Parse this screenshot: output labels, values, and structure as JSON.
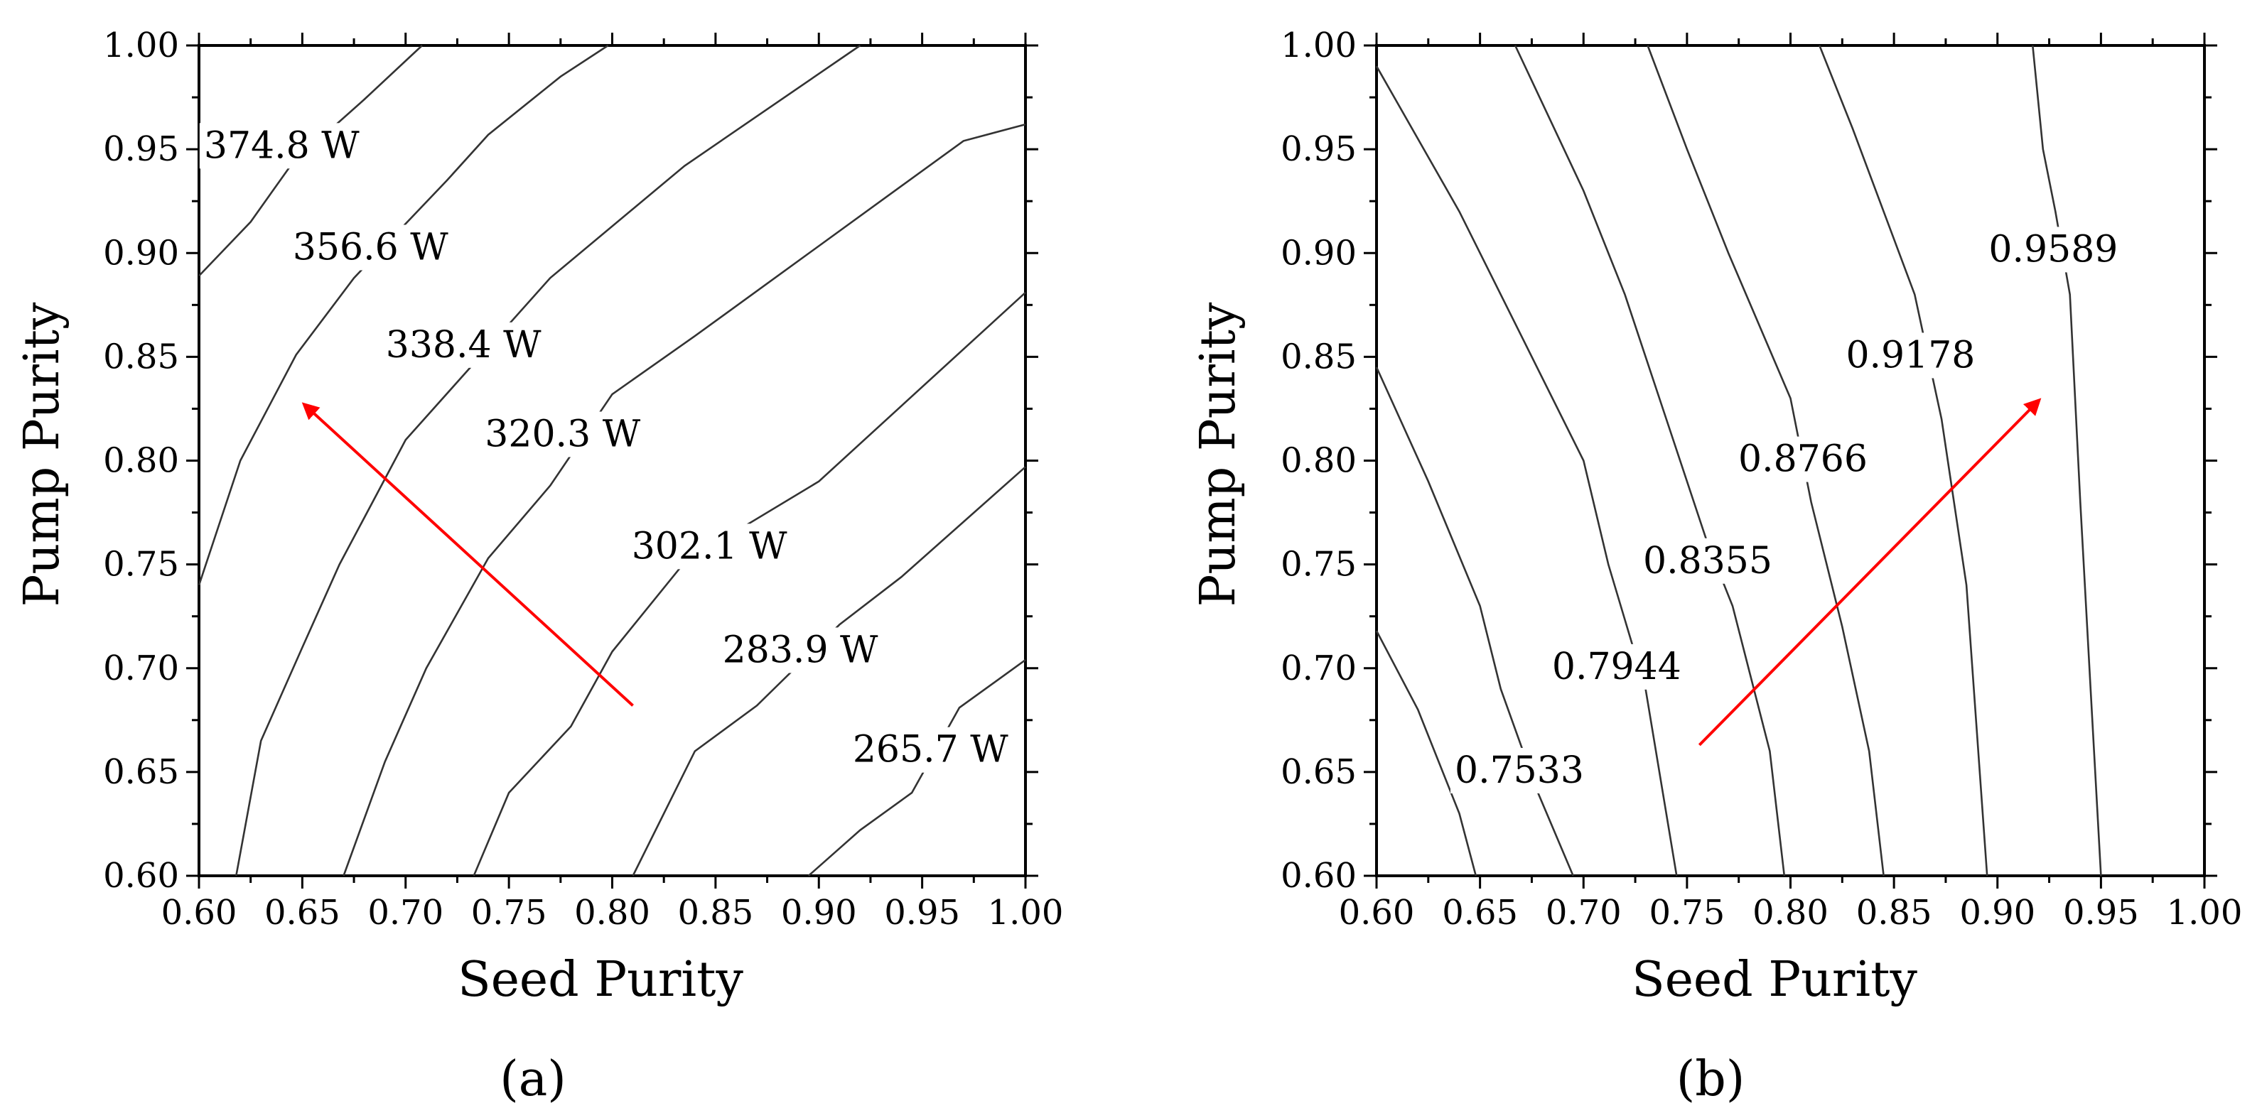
{
  "chart_data": [
    {
      "type": "contour",
      "panel_label": "(a)",
      "xlabel": "Seed Purity",
      "ylabel": "Pump Purity",
      "xlim": [
        0.6,
        1.0
      ],
      "ylim": [
        0.6,
        1.0
      ],
      "x_ticks": [
        "0.60",
        "0.65",
        "0.70",
        "0.75",
        "0.80",
        "0.85",
        "0.90",
        "0.95",
        "1.00"
      ],
      "y_ticks": [
        "0.60",
        "0.65",
        "0.70",
        "0.75",
        "0.80",
        "0.85",
        "0.90",
        "0.95",
        "1.00"
      ],
      "contours": [
        {
          "label": "374.8 W",
          "label_at": [
            0.64,
            0.952
          ],
          "points": [
            [
              0.6,
              0.889
            ],
            [
              0.625,
              0.915
            ],
            [
              0.645,
              0.943
            ],
            [
              0.68,
              0.974
            ],
            [
              0.708,
              1.0
            ]
          ]
        },
        {
          "label": "356.6 W",
          "label_at": [
            0.683,
            0.903
          ],
          "points": [
            [
              0.6,
              0.74
            ],
            [
              0.62,
              0.8
            ],
            [
              0.647,
              0.851
            ],
            [
              0.675,
              0.888
            ],
            [
              0.72,
              0.935
            ],
            [
              0.74,
              0.957
            ],
            [
              0.775,
              0.985
            ],
            [
              0.798,
              1.0
            ]
          ]
        },
        {
          "label": "338.4 W",
          "label_at": [
            0.728,
            0.856
          ],
          "points": [
            [
              0.618,
              0.6
            ],
            [
              0.63,
              0.665
            ],
            [
              0.65,
              0.71
            ],
            [
              0.668,
              0.75
            ],
            [
              0.7,
              0.81
            ],
            [
              0.77,
              0.888
            ],
            [
              0.835,
              0.942
            ],
            [
              0.92,
              1.0
            ]
          ]
        },
        {
          "label": "320.3 W",
          "label_at": [
            0.776,
            0.813
          ],
          "points": [
            [
              0.67,
              0.6
            ],
            [
              0.69,
              0.655
            ],
            [
              0.71,
              0.7
            ],
            [
              0.74,
              0.753
            ],
            [
              0.77,
              0.788
            ],
            [
              0.8,
              0.832
            ],
            [
              0.84,
              0.86
            ],
            [
              0.97,
              0.954
            ],
            [
              1.0,
              0.962
            ]
          ]
        },
        {
          "label": "302.1 W",
          "label_at": [
            0.847,
            0.759
          ],
          "points": [
            [
              0.733,
              0.6
            ],
            [
              0.75,
              0.64
            ],
            [
              0.78,
              0.672
            ],
            [
              0.8,
              0.708
            ],
            [
              0.835,
              0.751
            ],
            [
              0.9,
              0.79
            ],
            [
              1.0,
              0.881
            ]
          ]
        },
        {
          "label": "283.9 W",
          "label_at": [
            0.891,
            0.709
          ],
          "points": [
            [
              0.81,
              0.6
            ],
            [
              0.84,
              0.66
            ],
            [
              0.87,
              0.682
            ],
            [
              0.91,
              0.721
            ],
            [
              0.94,
              0.744
            ],
            [
              1.0,
              0.797
            ]
          ]
        },
        {
          "label": "265.7 W",
          "label_at": [
            0.954,
            0.661
          ],
          "points": [
            [
              0.895,
              0.6
            ],
            [
              0.92,
              0.622
            ],
            [
              0.945,
              0.64
            ],
            [
              0.968,
              0.681
            ],
            [
              1.0,
              0.704
            ]
          ]
        }
      ],
      "arrow": {
        "from": [
          0.81,
          0.682
        ],
        "to": [
          0.651,
          0.827
        ],
        "color": "#ff0000"
      }
    },
    {
      "type": "contour",
      "panel_label": "(b)",
      "xlabel": "Seed Purity",
      "ylabel": "Pump Purity",
      "xlim": [
        0.6,
        1.0
      ],
      "ylim": [
        0.6,
        1.0
      ],
      "x_ticks": [
        "0.60",
        "0.65",
        "0.70",
        "0.75",
        "0.80",
        "0.85",
        "0.90",
        "0.95",
        "1.00"
      ],
      "y_ticks": [
        "0.60",
        "0.65",
        "0.70",
        "0.75",
        "0.80",
        "0.85",
        "0.90",
        "0.95",
        "1.00"
      ],
      "contours": [
        {
          "label": "",
          "label_at": null,
          "points": [
            [
              0.6,
              0.718
            ],
            [
              0.62,
              0.68
            ],
            [
              0.64,
              0.63
            ],
            [
              0.648,
              0.6
            ]
          ]
        },
        {
          "label": "0.7533",
          "label_at": [
            0.669,
            0.651
          ],
          "points": [
            [
              0.6,
              0.845
            ],
            [
              0.625,
              0.79
            ],
            [
              0.65,
              0.73
            ],
            [
              0.66,
              0.69
            ],
            [
              0.678,
              0.64
            ],
            [
              0.695,
              0.6
            ]
          ]
        },
        {
          "label": "0.7944",
          "label_at": [
            0.716,
            0.701
          ],
          "points": [
            [
              0.6,
              0.99
            ],
            [
              0.64,
              0.92
            ],
            [
              0.67,
              0.86
            ],
            [
              0.7,
              0.8
            ],
            [
              0.712,
              0.75
            ],
            [
              0.73,
              0.69
            ],
            [
              0.745,
              0.6
            ]
          ]
        },
        {
          "label": "0.8355",
          "label_at": [
            0.76,
            0.752
          ],
          "points": [
            [
              0.667,
              1.0
            ],
            [
              0.7,
              0.93
            ],
            [
              0.72,
              0.88
            ],
            [
              0.74,
              0.82
            ],
            [
              0.76,
              0.76
            ],
            [
              0.772,
              0.73
            ],
            [
              0.79,
              0.66
            ],
            [
              0.797,
              0.6
            ]
          ]
        },
        {
          "label": "0.8766",
          "label_at": [
            0.806,
            0.801
          ],
          "points": [
            [
              0.731,
              1.0
            ],
            [
              0.75,
              0.95
            ],
            [
              0.77,
              0.9
            ],
            [
              0.8,
              0.83
            ],
            [
              0.81,
              0.78
            ],
            [
              0.825,
              0.72
            ],
            [
              0.838,
              0.66
            ],
            [
              0.845,
              0.6
            ]
          ]
        },
        {
          "label": "0.9178",
          "label_at": [
            0.858,
            0.851
          ],
          "points": [
            [
              0.814,
              1.0
            ],
            [
              0.83,
              0.96
            ],
            [
              0.845,
              0.92
            ],
            [
              0.86,
              0.88
            ],
            [
              0.873,
              0.82
            ],
            [
              0.885,
              0.74
            ],
            [
              0.895,
              0.6
            ]
          ]
        },
        {
          "label": "0.9589",
          "label_at": [
            0.927,
            0.902
          ],
          "points": [
            [
              0.917,
              1.0
            ],
            [
              0.922,
              0.95
            ],
            [
              0.928,
              0.92
            ],
            [
              0.935,
              0.88
            ],
            [
              0.94,
              0.78
            ],
            [
              0.945,
              0.69
            ],
            [
              0.95,
              0.6
            ]
          ]
        }
      ],
      "arrow": {
        "from": [
          0.756,
          0.663
        ],
        "to": [
          0.92,
          0.829
        ],
        "color": "#ff0000"
      }
    }
  ]
}
